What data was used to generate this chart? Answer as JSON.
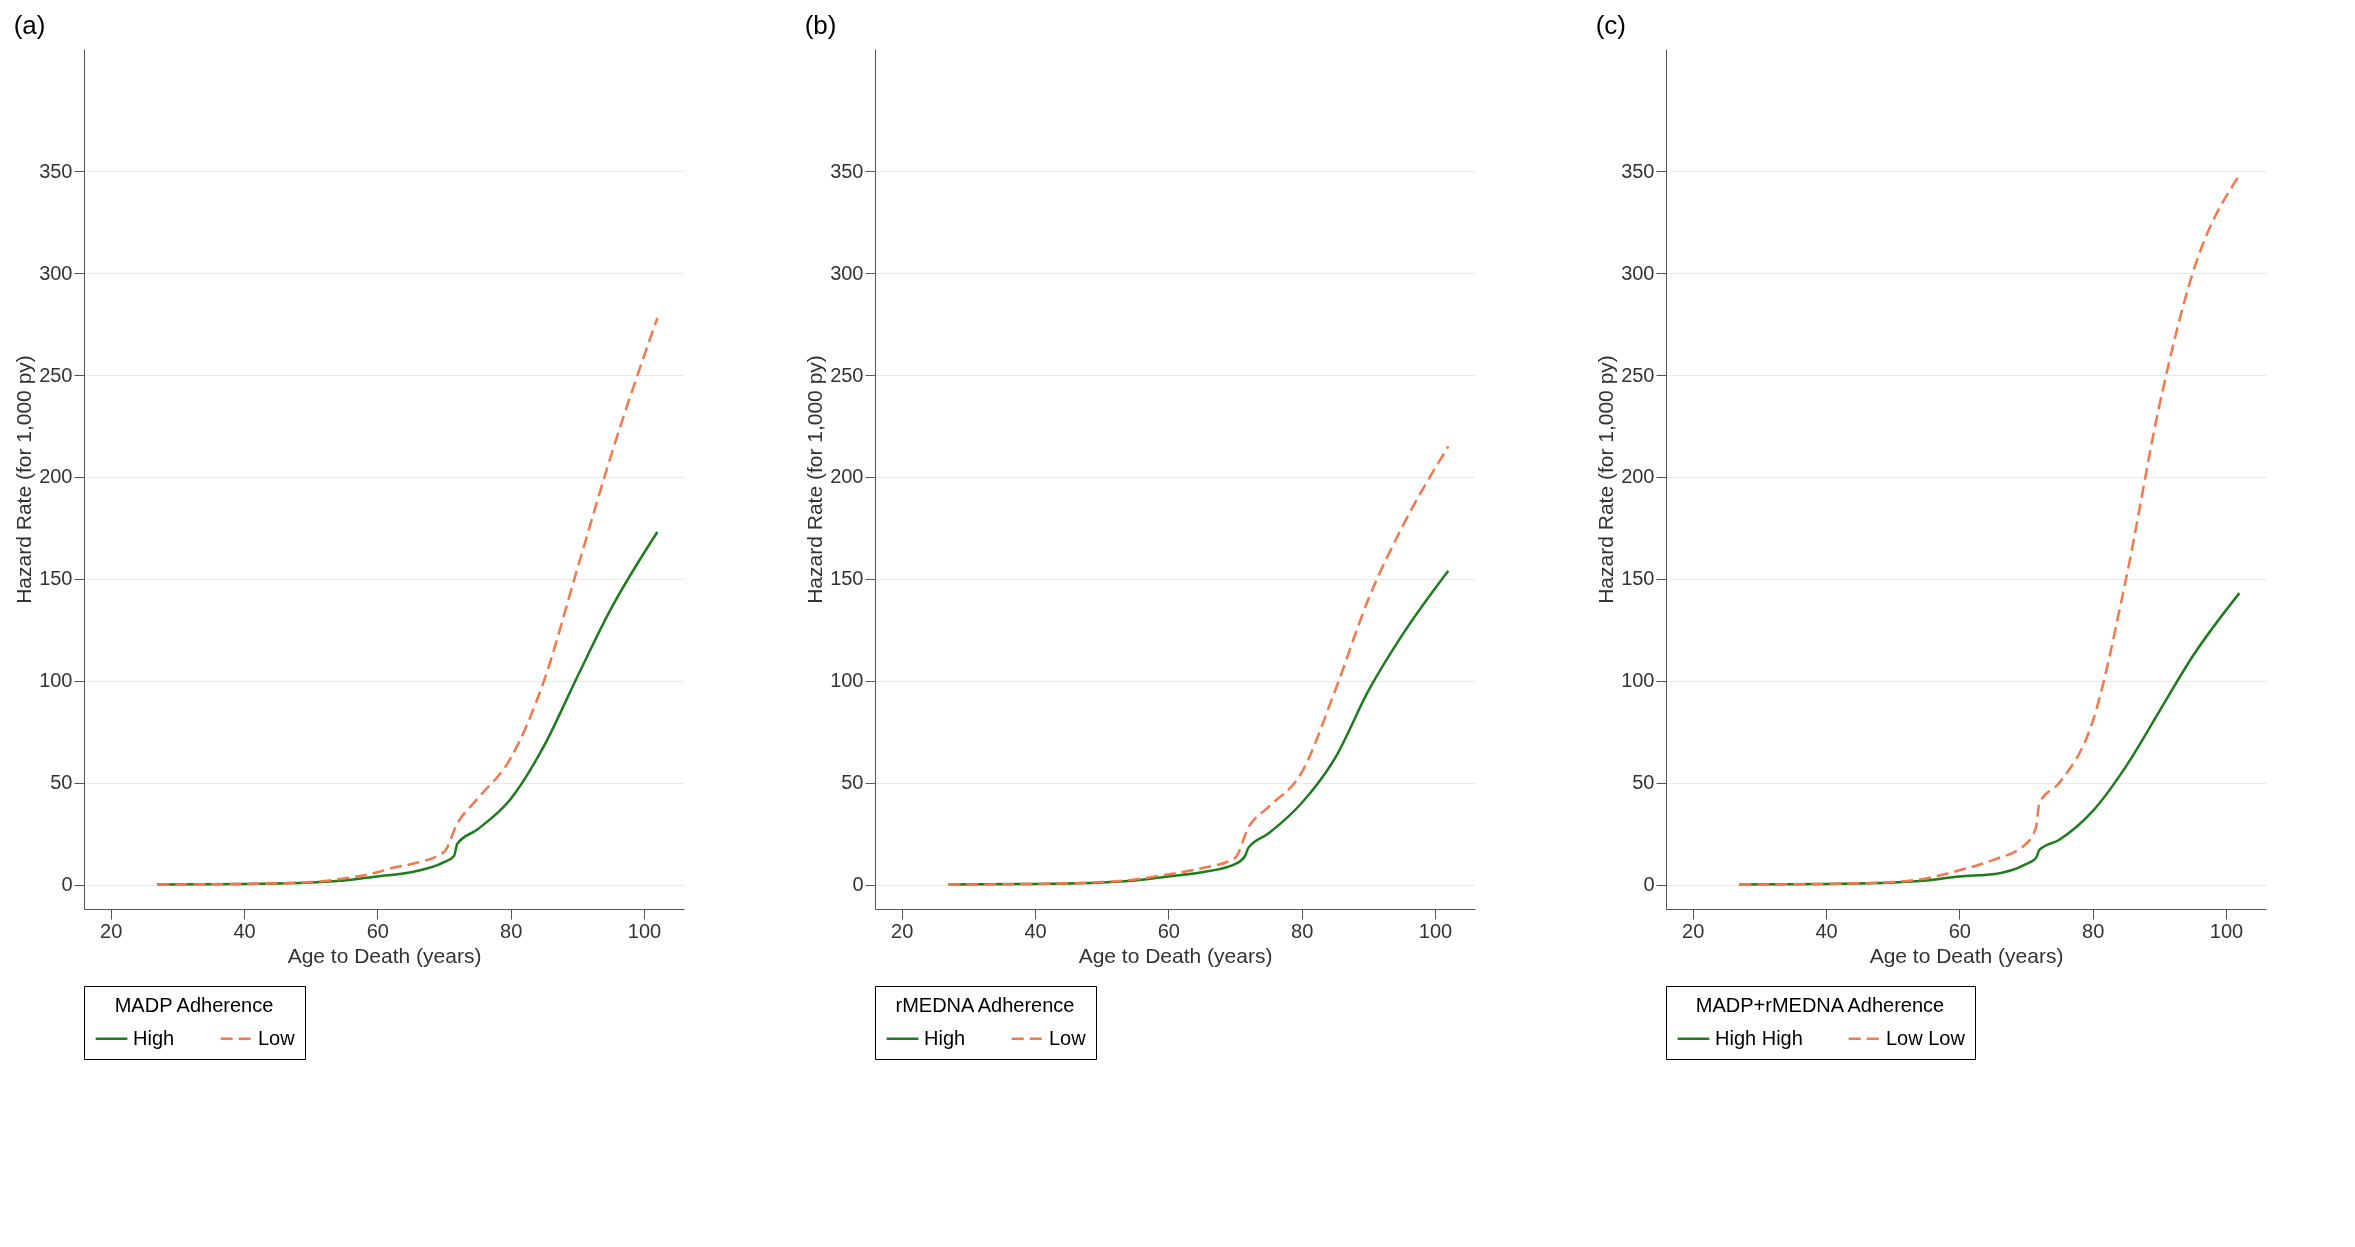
{
  "chart_data": [
    {
      "type": "line",
      "title": "(a)",
      "xlabel": "Age to Death (years)",
      "ylabel": "Hazard Rate (for 1,000 py)",
      "legend_title": "MADP Adherence",
      "legend": "bottom",
      "grid": "y",
      "xlim": [
        16,
        106
      ],
      "xticks": [
        20,
        40,
        60,
        80,
        100
      ],
      "ylim": [
        -12,
        410
      ],
      "yticks": [
        0,
        50,
        100,
        150,
        200,
        250,
        300,
        350
      ],
      "series": [
        {
          "name": "High",
          "color": "#1e7b1e",
          "line_style": "solid",
          "x": [
            27,
            40,
            50,
            55,
            60,
            65,
            70,
            71.5,
            72,
            75,
            80,
            85,
            90,
            95,
            102
          ],
          "values": [
            0,
            0.3,
            1,
            2,
            4,
            6,
            11,
            14,
            20,
            27,
            42,
            68,
            102,
            135,
            173
          ]
        },
        {
          "name": "Low",
          "color": "#f4784a",
          "line_style": "dashed",
          "x": [
            27,
            40,
            50,
            55,
            60,
            62,
            65,
            70,
            72,
            75,
            80,
            85,
            90,
            95,
            102
          ],
          "values": [
            0,
            0.3,
            1.2,
            3,
            6,
            8,
            10,
            16,
            30,
            42,
            62,
            100,
            155,
            210,
            278
          ]
        }
      ]
    },
    {
      "type": "line",
      "title": "(b)",
      "xlabel": "Age to Death (years)",
      "ylabel": "Hazard Rate (for 1,000 py)",
      "legend_title": "rMEDNA Adherence",
      "legend": "bottom",
      "grid": "y",
      "xlim": [
        16,
        106
      ],
      "xticks": [
        20,
        40,
        60,
        80,
        100
      ],
      "ylim": [
        -12,
        410
      ],
      "yticks": [
        0,
        50,
        100,
        150,
        200,
        250,
        300,
        350
      ],
      "series": [
        {
          "name": "High",
          "color": "#1e7b1e",
          "line_style": "solid",
          "x": [
            27,
            40,
            50,
            55,
            60,
            65,
            70,
            71.5,
            72,
            75,
            80,
            85,
            90,
            95,
            102
          ],
          "values": [
            0,
            0.3,
            1,
            2,
            4,
            6,
            10,
            14,
            18,
            25,
            40,
            62,
            95,
            122,
            154
          ]
        },
        {
          "name": "Low",
          "color": "#f4784a",
          "line_style": "dashed",
          "x": [
            27,
            40,
            50,
            55,
            60,
            62,
            65,
            70,
            72,
            75,
            80,
            85,
            90,
            95,
            102
          ],
          "values": [
            0,
            0.3,
            1.2,
            2.5,
            5,
            6,
            8,
            13,
            28,
            38,
            55,
            95,
            140,
            175,
            215
          ]
        }
      ]
    },
    {
      "type": "line",
      "title": "(c)",
      "xlabel": "Age to Death (years)",
      "ylabel": "Hazard Rate (for 1,000 py)",
      "legend_title": "MADP+rMEDNA Adherence",
      "legend": "bottom",
      "grid": "y",
      "xlim": [
        16,
        106
      ],
      "xticks": [
        20,
        40,
        60,
        80,
        100
      ],
      "ylim": [
        -12,
        410
      ],
      "yticks": [
        0,
        50,
        100,
        150,
        200,
        250,
        300,
        350
      ],
      "series": [
        {
          "name": "High High",
          "color": "#1e7b1e",
          "line_style": "solid",
          "x": [
            27,
            40,
            50,
            55,
            60,
            65,
            70,
            71.5,
            72,
            75,
            80,
            85,
            90,
            95,
            102
          ],
          "values": [
            0,
            0.3,
            1,
            2,
            4,
            5,
            10,
            13,
            17,
            22,
            36,
            58,
            85,
            112,
            143
          ]
        },
        {
          "name": "Low Low",
          "color": "#f4784a",
          "line_style": "dashed",
          "x": [
            27,
            40,
            50,
            55,
            60,
            65,
            70,
            71.5,
            72,
            75,
            80,
            85,
            90,
            95,
            102
          ],
          "values": [
            0,
            0.3,
            1.2,
            3,
            7,
            12,
            20,
            28,
            40,
            50,
            80,
            150,
            235,
            300,
            348
          ]
        }
      ]
    }
  ]
}
